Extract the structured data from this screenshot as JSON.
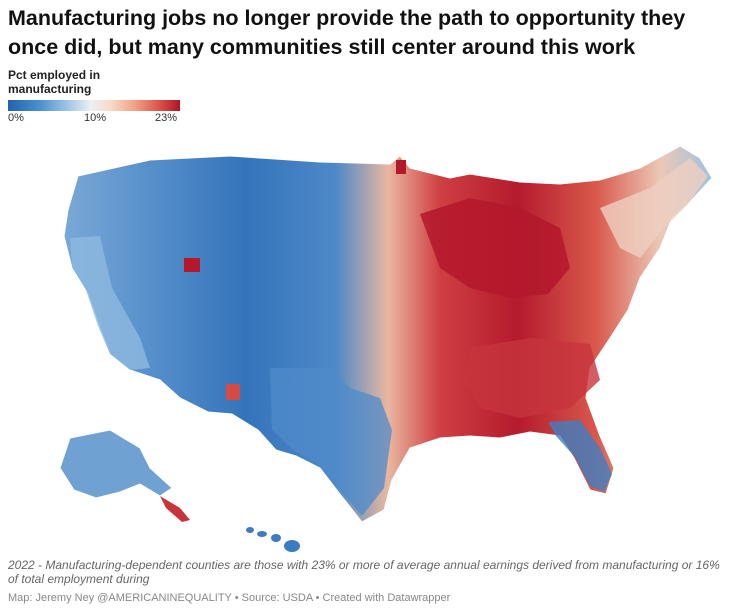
{
  "title": "Manufacturing jobs no longer provide the path to opportunity they once did, but many communities still center around this work",
  "legend": {
    "title": "Pct employed in manufacturing",
    "min_label": "0%",
    "mid_label": "10%",
    "max_label": "23%",
    "colors": [
      "#1f63ad",
      "#4a8fcc",
      "#9bc3e4",
      "#eaf0f4",
      "#f8d9c6",
      "#f0a184",
      "#d9534a",
      "#b01427"
    ]
  },
  "map": {
    "regions": [
      {
        "name": "Pacific Northwest",
        "value": "low",
        "color": "#6fa2d3"
      },
      {
        "name": "California",
        "value": "low",
        "color": "#8db9e0"
      },
      {
        "name": "Mountain West",
        "value": "low",
        "color": "#3f7fc2"
      },
      {
        "name": "Northern Plains",
        "value": "low",
        "color": "#2a6bb5"
      },
      {
        "name": "Southwest",
        "value": "low",
        "color": "#5c94cd"
      },
      {
        "name": "Texas",
        "value": "mixed",
        "color": "#5d95cf"
      },
      {
        "name": "Midwest",
        "value": "high",
        "color": "#c7343c"
      },
      {
        "name": "Great Lakes",
        "value": "high",
        "color": "#b3182b"
      },
      {
        "name": "Southeast",
        "value": "high",
        "color": "#d44a46"
      },
      {
        "name": "Florida",
        "value": "low",
        "color": "#4f8bc9"
      },
      {
        "name": "Northeast",
        "value": "mixed",
        "color": "#e9c4b4"
      },
      {
        "name": "Alaska",
        "value": "low",
        "color": "#6fa2d3"
      },
      {
        "name": "Hawaii",
        "value": "low",
        "color": "#3d7cc0"
      }
    ]
  },
  "caption": "2022 - Manufacturing-dependent counties are those with 23% or more of average annual earnings derived from manufacturing or 16% of total employment during",
  "source": "Map: Jeremy Ney @AMERICANINEQUALITY • Source: USDA • Created with Datawrapper"
}
